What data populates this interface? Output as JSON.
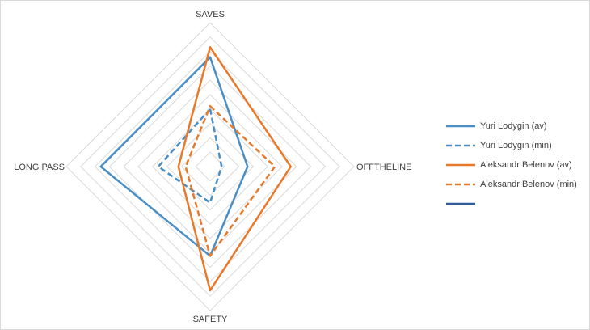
{
  "colors": {
    "blue": "#4a8ec6",
    "orange": "#e8792b",
    "dark_blue": "#2e5d9a",
    "grid": "#d9d9d9",
    "text": "#404040"
  },
  "chart_data": {
    "type": "radar",
    "axes": [
      "SAVES",
      "OFFTHELINE",
      "SAFETY",
      "LONG PASS"
    ],
    "range": [
      0,
      10
    ],
    "grid_rings": 10,
    "series": [
      {
        "name": "Yuri Lodygin (av)",
        "values": [
          7.6,
          2.6,
          6.2,
          7.6
        ],
        "color": "#4a8ec6",
        "dash": "solid"
      },
      {
        "name": "Yuri Lodygin (min)",
        "values": [
          4.0,
          0.8,
          2.5,
          3.6
        ],
        "color": "#4a8ec6",
        "dash": "dashed"
      },
      {
        "name": "Aleksandr Belenov (av)",
        "values": [
          8.3,
          5.6,
          8.6,
          2.2
        ],
        "color": "#e8792b",
        "dash": "solid"
      },
      {
        "name": "Aleksandr Belenov (min)",
        "values": [
          4.2,
          4.5,
          6.2,
          1.7
        ],
        "color": "#e8792b",
        "dash": "dashed"
      },
      {
        "name": "",
        "values": [],
        "color": "#2e5d9a",
        "dash": "solid"
      }
    ]
  }
}
